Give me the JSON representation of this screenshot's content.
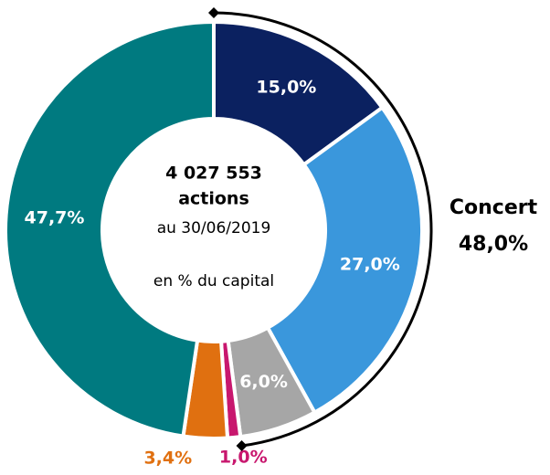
{
  "chart_data": {
    "type": "donut",
    "center_text": [
      "4 027 553",
      "actions",
      "au 30/06/2019",
      "en % du capital"
    ],
    "values": [
      15.0,
      27.0,
      6.0,
      1.0,
      3.4,
      47.7
    ],
    "value_labels": [
      "15,0%",
      "27,0%",
      "6,0%",
      "1,0%",
      "3,4%",
      "47,7%"
    ],
    "colors": [
      "#0b2160",
      "#3a97dc",
      "#a6a6a6",
      "#c8176e",
      "#e07010",
      "#007a80"
    ],
    "annotation": {
      "label": "Concert",
      "value": 48.0,
      "value_label": "48,0%"
    }
  }
}
